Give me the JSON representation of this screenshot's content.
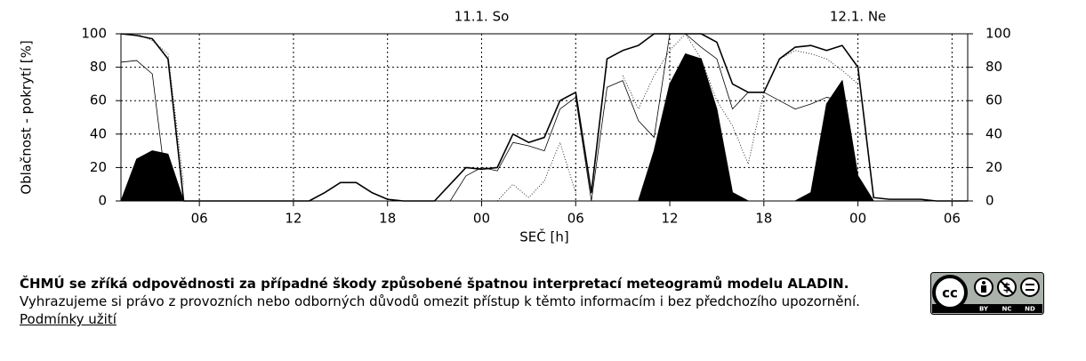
{
  "chart_data": {
    "type": "line",
    "y_label": "Oblačnost - pokrytí [%]",
    "x_label": "SEČ [h]",
    "annotations": [
      {
        "text": "11.1. So",
        "x": 24
      },
      {
        "text": "12.1. Ne",
        "x": 48
      }
    ],
    "x": [
      1,
      2,
      3,
      4,
      5,
      6,
      7,
      8,
      9,
      10,
      11,
      12,
      13,
      14,
      15,
      16,
      17,
      18,
      19,
      20,
      21,
      22,
      23,
      24,
      25,
      26,
      27,
      28,
      29,
      30,
      31,
      32,
      33,
      34,
      35,
      36,
      37,
      38,
      39,
      40,
      41,
      42,
      43,
      44,
      45,
      46,
      47,
      48,
      49,
      50,
      51,
      52,
      53,
      54,
      55
    ],
    "xlim": [
      1,
      55
    ],
    "xticks": [
      {
        "value": 6,
        "label": "06"
      },
      {
        "value": 12,
        "label": "12"
      },
      {
        "value": 18,
        "label": "18"
      },
      {
        "value": 24,
        "label": "00"
      },
      {
        "value": 30,
        "label": "06"
      },
      {
        "value": 36,
        "label": "12"
      },
      {
        "value": 42,
        "label": "18"
      },
      {
        "value": 48,
        "label": "00"
      },
      {
        "value": 54,
        "label": "06"
      }
    ],
    "ylim": [
      0,
      100
    ],
    "yticks": [
      0,
      20,
      40,
      60,
      80,
      100
    ],
    "grid": true,
    "series": [
      {
        "style": "area",
        "color": "#000000",
        "values": [
          0,
          25,
          30,
          28,
          0,
          0,
          0,
          0,
          0,
          0,
          0,
          0,
          0,
          0,
          0,
          0,
          0,
          0,
          0,
          0,
          0,
          0,
          0,
          0,
          0,
          0,
          0,
          0,
          0,
          0,
          0,
          0,
          0,
          0,
          30,
          70,
          88,
          85,
          55,
          5,
          0,
          0,
          0,
          0,
          5,
          58,
          72,
          15,
          0,
          0,
          0,
          0,
          0,
          0,
          0
        ]
      },
      {
        "style": "thick",
        "color": "#000000",
        "values": [
          100,
          99,
          97,
          85,
          0,
          0,
          0,
          0,
          0,
          0,
          0,
          0,
          0,
          5,
          11,
          11,
          5,
          1,
          0,
          0,
          0,
          10,
          20,
          19,
          20,
          40,
          35,
          38,
          60,
          65,
          5,
          85,
          90,
          93,
          100,
          100,
          100,
          100,
          95,
          70,
          65,
          65,
          85,
          92,
          93,
          90,
          93,
          80,
          2,
          1,
          1,
          1,
          0,
          0,
          0
        ]
      },
      {
        "style": "thin",
        "color": "#000000",
        "values": [
          83,
          84,
          76,
          0,
          0,
          0,
          0,
          0,
          0,
          0,
          0,
          0,
          0,
          0,
          0,
          0,
          0,
          0,
          0,
          0,
          0,
          0,
          15,
          20,
          18,
          35,
          33,
          30,
          55,
          62,
          0,
          68,
          72,
          48,
          38,
          100,
          100,
          92,
          85,
          55,
          65,
          65,
          60,
          55,
          58,
          62,
          60,
          0,
          0,
          0,
          0,
          0,
          0,
          0,
          0
        ]
      },
      {
        "style": "dotted",
        "color": "#000000",
        "values": [
          100,
          100,
          96,
          88,
          10,
          null,
          null,
          null,
          null,
          null,
          null,
          null,
          null,
          null,
          null,
          null,
          null,
          null,
          null,
          null,
          null,
          null,
          null,
          null,
          0,
          10,
          2,
          12,
          35,
          5,
          null,
          null,
          75,
          55,
          75,
          90,
          100,
          85,
          60,
          45,
          22,
          65,
          85,
          90,
          88,
          85,
          78,
          70,
          null,
          null,
          null,
          null,
          null,
          null,
          null
        ]
      }
    ]
  },
  "footer": {
    "bold": "ČHMÚ se zříká odpovědnosti za případné škody způsobené špatnou interpretací meteogramů modelu ALADIN.",
    "text": "Vyhrazujeme si právo z provozních nebo odborných důvodů omezit přístup k těmto informacím i bez předchozího upozornění.",
    "link": "Podmínky užití"
  },
  "license": {
    "logo": "cc",
    "badges": [
      "BY",
      "NC",
      "ND"
    ]
  }
}
